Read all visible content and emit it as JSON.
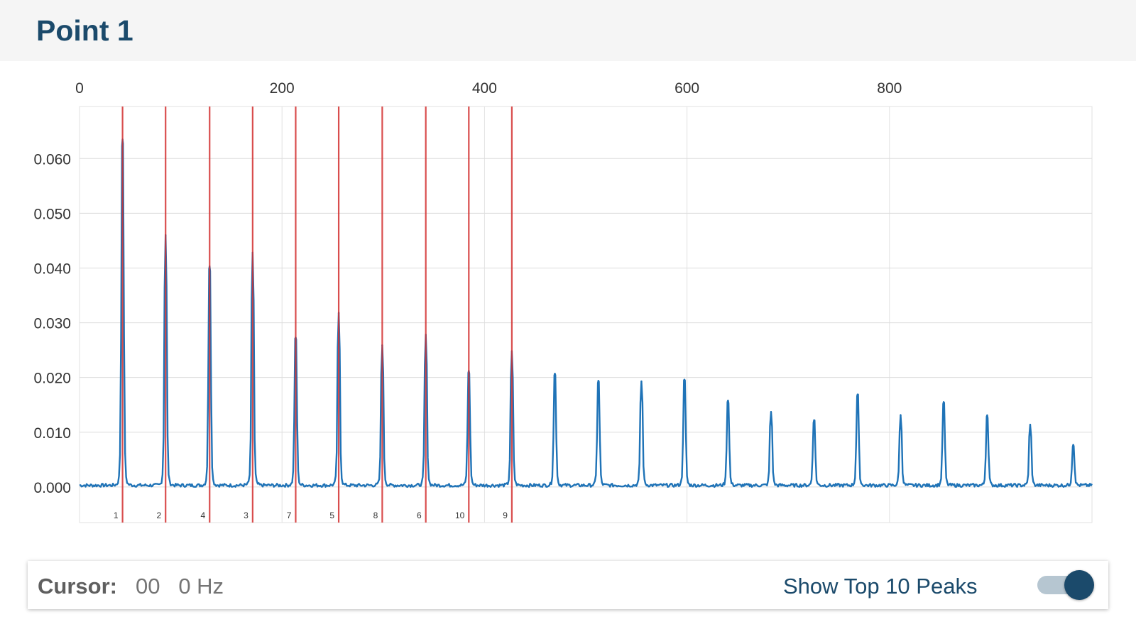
{
  "header": {
    "title": "Point 1"
  },
  "chart_data": {
    "type": "line",
    "title": "",
    "xlabel": "",
    "ylabel": "",
    "xlim": [
      0,
      1000
    ],
    "ylim": [
      -0.0065,
      0.0695
    ],
    "x_ticks": [
      "0",
      "200",
      "400",
      "600",
      "800"
    ],
    "x_tick_values": [
      0,
      200,
      400,
      600,
      800
    ],
    "y_ticks": [
      "0.060",
      "0.050",
      "0.040",
      "0.030",
      "0.020",
      "0.010",
      "0.000"
    ],
    "y_tick_values": [
      0.06,
      0.05,
      0.04,
      0.03,
      0.02,
      0.01,
      0.0
    ],
    "grid": true,
    "x_axis_position": "top",
    "series": [
      {
        "color": "#1f73b7",
        "peaks": [
          {
            "x": 42.5,
            "y": 0.0635
          },
          {
            "x": 85,
            "y": 0.046
          },
          {
            "x": 128.5,
            "y": 0.0403
          },
          {
            "x": 171,
            "y": 0.0428
          },
          {
            "x": 213.5,
            "y": 0.0273
          },
          {
            "x": 256,
            "y": 0.0317
          },
          {
            "x": 299,
            "y": 0.0259
          },
          {
            "x": 342,
            "y": 0.0278
          },
          {
            "x": 384.5,
            "y": 0.0212
          },
          {
            "x": 427,
            "y": 0.0247
          },
          {
            "x": 469.5,
            "y": 0.0207
          },
          {
            "x": 512.5,
            "y": 0.0194
          },
          {
            "x": 555,
            "y": 0.0193
          },
          {
            "x": 597.5,
            "y": 0.0196
          },
          {
            "x": 640.5,
            "y": 0.0158
          },
          {
            "x": 683,
            "y": 0.0137
          },
          {
            "x": 725.5,
            "y": 0.0122
          },
          {
            "x": 768.5,
            "y": 0.0169
          },
          {
            "x": 811,
            "y": 0.013
          },
          {
            "x": 853.5,
            "y": 0.0155
          },
          {
            "x": 896.5,
            "y": 0.0131
          },
          {
            "x": 939,
            "y": 0.0113
          },
          {
            "x": 981.5,
            "y": 0.0077
          }
        ]
      }
    ],
    "top_peaks": {
      "color": "#d32f2f",
      "markers": [
        {
          "x": 42.5,
          "label": "1"
        },
        {
          "x": 85,
          "label": "2"
        },
        {
          "x": 128.5,
          "label": "4"
        },
        {
          "x": 171,
          "label": "3"
        },
        {
          "x": 213.5,
          "label": "7"
        },
        {
          "x": 256,
          "label": "5"
        },
        {
          "x": 299,
          "label": "8"
        },
        {
          "x": 342,
          "label": "6"
        },
        {
          "x": 384.5,
          "label": "10"
        },
        {
          "x": 427,
          "label": "9"
        }
      ]
    }
  },
  "footer": {
    "cursor_label": "Cursor:",
    "cursor_value": "00   0 Hz",
    "peaks_toggle_label": "Show Top 10 Peaks",
    "peaks_toggle_on": true
  }
}
